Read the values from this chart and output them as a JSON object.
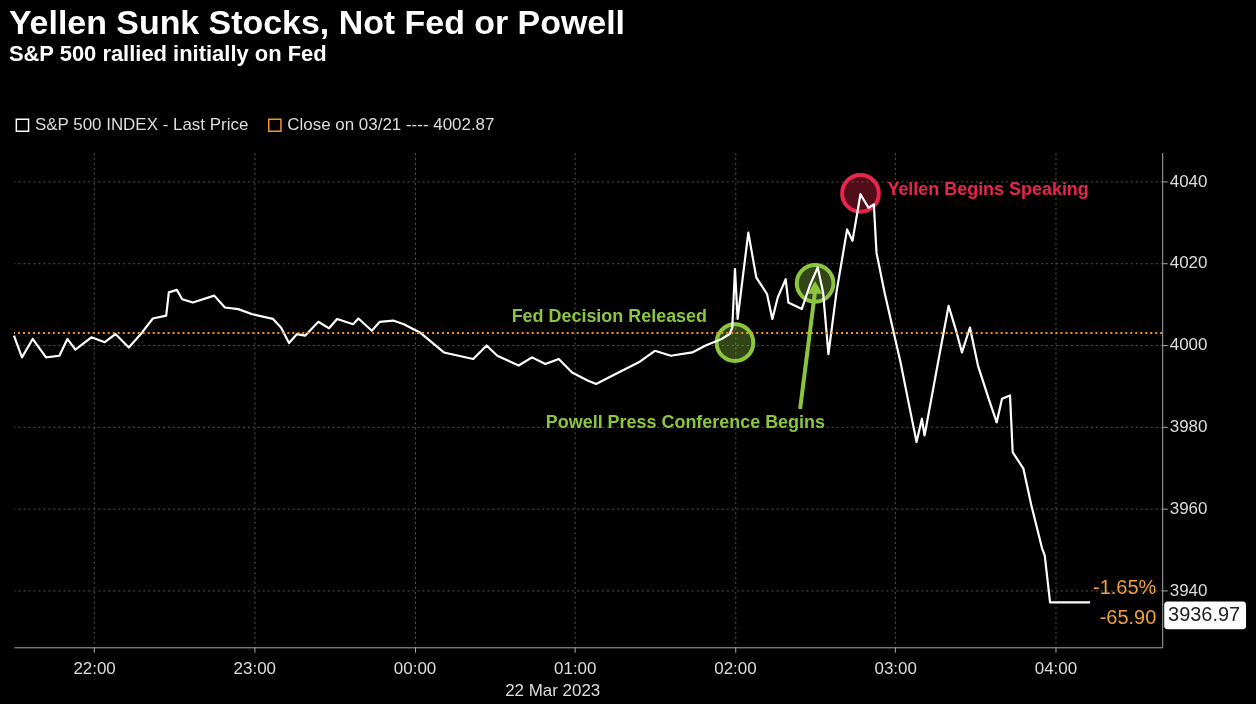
{
  "chart_data": {
    "type": "line",
    "title": "Yellen Sunk Stocks, Not Fed or Powell",
    "subtitle": "S&P 500 rallied initially on Fed",
    "x": [
      "2023-03-21T21:30",
      "2023-03-21T21:33",
      "2023-03-21T21:37",
      "2023-03-21T21:42",
      "2023-03-21T21:47",
      "2023-03-21T21:50",
      "2023-03-21T21:53",
      "2023-03-21T21:59",
      "2023-03-21T22:04",
      "2023-03-21T22:08",
      "2023-03-21T22:13",
      "2023-03-21T22:18",
      "2023-03-21T22:22",
      "2023-03-21T22:27",
      "2023-03-21T22:28",
      "2023-03-21T22:31",
      "2023-03-21T22:33",
      "2023-03-21T22:37",
      "2023-03-21T22:45",
      "2023-03-21T22:49",
      "2023-03-21T22:54",
      "2023-03-21T22:59",
      "2023-03-21T23:07",
      "2023-03-21T23:10",
      "2023-03-21T23:13",
      "2023-03-21T23:16",
      "2023-03-21T23:19",
      "2023-03-21T23:24",
      "2023-03-21T23:28",
      "2023-03-21T23:31",
      "2023-03-21T23:37",
      "2023-03-21T23:39",
      "2023-03-21T23:44",
      "2023-03-21T23:47",
      "2023-03-21T23:52",
      "2023-03-21T23:56",
      "2023-03-22T00:02",
      "2023-03-22T00:11",
      "2023-03-22T00:22",
      "2023-03-22T00:27",
      "2023-03-22T00:31",
      "2023-03-22T00:39",
      "2023-03-22T00:44",
      "2023-03-22T00:49",
      "2023-03-22T00:54",
      "2023-03-22T00:59",
      "2023-03-22T01:05",
      "2023-03-22T01:08",
      "2023-03-22T01:14",
      "2023-03-22T01:24",
      "2023-03-22T01:30",
      "2023-03-22T01:36",
      "2023-03-22T01:44",
      "2023-03-22T01:49",
      "2023-03-22T01:55",
      "2023-03-22T01:58",
      "2023-03-22T01:59",
      "2023-03-22T02:00",
      "2023-03-22T02:01",
      "2023-03-22T02:05",
      "2023-03-22T02:08",
      "2023-03-22T02:12",
      "2023-03-22T02:14",
      "2023-03-22T02:16",
      "2023-03-22T02:19",
      "2023-03-22T02:20",
      "2023-03-22T02:25",
      "2023-03-22T02:28",
      "2023-03-22T02:31",
      "2023-03-22T02:33",
      "2023-03-22T02:35",
      "2023-03-22T02:38",
      "2023-03-22T02:42",
      "2023-03-22T02:44",
      "2023-03-22T02:47",
      "2023-03-22T02:50",
      "2023-03-22T02:52",
      "2023-03-22T02:53",
      "2023-03-22T02:56",
      "2023-03-22T03:00",
      "2023-03-22T03:02",
      "2023-03-22T03:05",
      "2023-03-22T03:08",
      "2023-03-22T03:10",
      "2023-03-22T03:11",
      "2023-03-22T03:14",
      "2023-03-22T03:17",
      "2023-03-22T03:20",
      "2023-03-22T03:23",
      "2023-03-22T03:25",
      "2023-03-22T03:28",
      "2023-03-22T03:31",
      "2023-03-22T03:35",
      "2023-03-22T03:38",
      "2023-03-22T03:40",
      "2023-03-22T03:43",
      "2023-03-22T03:44",
      "2023-03-22T03:48",
      "2023-03-22T03:51",
      "2023-03-22T03:55",
      "2023-03-22T03:56",
      "2023-03-22T03:58",
      "2023-03-22T04:13"
    ],
    "series": [
      {
        "name": "S&P 500 INDEX - Last Price",
        "color": "#ffffff",
        "values": [
          4002.2,
          3996.9,
          4001.4,
          3996.9,
          3997.3,
          4001.4,
          3998.8,
          4001.8,
          4000.6,
          4002.6,
          3999.3,
          4003.0,
          4006.4,
          4007.1,
          4012.8,
          4013.4,
          4011.1,
          4010.3,
          4012.0,
          4009.1,
          4008.7,
          4007.5,
          4006.3,
          4004.2,
          4000.4,
          4002.6,
          4002.2,
          4005.6,
          4004.0,
          4006.3,
          4005.0,
          4006.4,
          4003.4,
          4005.6,
          4005.9,
          4005.0,
          4003.0,
          3998.1,
          3996.5,
          3999.8,
          3997.3,
          3994.9,
          3996.9,
          3995.3,
          3996.5,
          3993.2,
          3991.2,
          3990.4,
          3992.4,
          3995.7,
          3998.5,
          3997.3,
          3998.1,
          3999.8,
          4001.4,
          4002.6,
          4004.2,
          4018.5,
          4006.3,
          4027.4,
          4016.4,
          4012.4,
          4006.3,
          4011.5,
          4016.0,
          4010.3,
          4008.7,
          4014.4,
          4018.9,
          4012.8,
          3997.7,
          4012.8,
          4028.2,
          4025.4,
          4036.8,
          4033.5,
          4034.3,
          4022.5,
          4012.8,
          4001.4,
          3995.7,
          3985.9,
          3976.2,
          3981.9,
          3977.8,
          3988.4,
          3999.0,
          4009.5,
          4003.0,
          3998.1,
          4004.2,
          3994.9,
          3986.8,
          3981.0,
          3986.8,
          3987.6,
          3973.7,
          3969.7,
          3960.7,
          3950.2,
          3948.5,
          3936.97,
          3936.97
        ]
      }
    ],
    "xlim": [
      "2023-03-21T21:30",
      "2023-03-22T04:40"
    ],
    "xticks": [
      {
        "value": "2023-03-21T22:00",
        "label": "22:00"
      },
      {
        "value": "2023-03-21T23:00",
        "label": "23:00"
      },
      {
        "value": "2023-03-22T00:00",
        "label": "00:00"
      },
      {
        "value": "2023-03-22T01:00",
        "label": "01:00"
      },
      {
        "value": "2023-03-22T02:00",
        "label": "02:00"
      },
      {
        "value": "2023-03-22T03:00",
        "label": "03:00"
      },
      {
        "value": "2023-03-22T04:00",
        "label": "04:00"
      }
    ],
    "ylim": [
      3926,
      4047
    ],
    "yticks": [
      3940,
      3960,
      3980,
      4000,
      4020,
      4040
    ],
    "ref_lines": [
      {
        "axis": "y",
        "value": 4002.87,
        "label": "Close on 03/21 ---- 4002.87",
        "color": "#f7941d",
        "line_style": "dotted"
      }
    ],
    "annotations": [
      {
        "text": "Fed Decision Released",
        "x": "2023-03-22T02:00",
        "y": 4000.5
      },
      {
        "text": "Powell Press Conference Begins",
        "x": "2023-03-22T02:30",
        "y": 4015
      },
      {
        "text": "Yellen Begins Speaking",
        "x": "2023-03-22T02:47",
        "y": 4037
      },
      "-1.65%",
      "-65.90",
      "3936.97",
      "22 Mar 2023"
    ],
    "grid": true,
    "legend": "top left",
    "marker": "none",
    "line_style": "solid"
  }
}
